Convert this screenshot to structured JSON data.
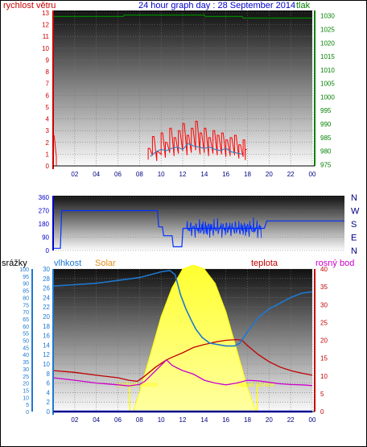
{
  "header": {
    "left_label": "rychlost větru",
    "title": "24 hour graph day : 28 September 2014",
    "right_label": "tlak"
  },
  "colors": {
    "wind": "#ff0000",
    "gust": "#4080c0",
    "pressure": "#008000",
    "direction": "#0030ff",
    "humidity": "#1e78d0",
    "solar": "#ffff00",
    "temperature": "#c00000",
    "dewpoint": "#cc00cc",
    "rain": "#0000ff"
  },
  "chart_data": [
    {
      "type": "line",
      "name": "wind-pressure",
      "x_ticks": [
        "02",
        "04",
        "06",
        "08",
        "10",
        "12",
        "14",
        "16",
        "18",
        "20",
        "22",
        "00"
      ],
      "y_left": {
        "label": "rychlost větru",
        "ticks": [
          0,
          1,
          2,
          3,
          4,
          5,
          6,
          7,
          8,
          9,
          10,
          11,
          12,
          13
        ],
        "ylim": [
          0,
          13
        ]
      },
      "y_right": {
        "label": "tlak",
        "ticks": [
          975,
          980,
          985,
          990,
          995,
          1000,
          1005,
          1010,
          1015,
          1020,
          1025,
          1030
        ],
        "ylim": [
          974.5,
          1032
        ]
      },
      "series": [
        {
          "key": "wind_speed",
          "x": [
            8.8,
            9.2,
            9.6,
            10,
            10.4,
            10.8,
            11.2,
            11.6,
            12,
            12.4,
            12.8,
            13.2,
            13.6,
            14,
            14.4,
            14.8,
            15.2,
            15.6,
            16,
            16.4,
            16.8,
            17.2,
            17.6,
            17.8
          ],
          "values": [
            1.5,
            2.5,
            1.2,
            2.8,
            2,
            3.2,
            2.4,
            3,
            3.6,
            2.6,
            3.2,
            3.8,
            2.8,
            3.2,
            2.4,
            3,
            2.6,
            2.8,
            2.2,
            2.4,
            2.6,
            1.8,
            2.2,
            1.4
          ]
        },
        {
          "key": "wind_gust",
          "x": [
            9,
            9.5,
            10,
            10.5,
            11,
            11.5,
            12,
            12.5,
            13,
            13.5,
            14,
            14.5,
            15,
            15.5,
            16,
            16.5,
            17,
            17.5
          ],
          "values": [
            0.8,
            1.2,
            1.4,
            1.3,
            1.5,
            1.6,
            1.4,
            1.9,
            1.7,
            1.6,
            1.5,
            1.6,
            1.4,
            1.3,
            1.5,
            1.2,
            1.1,
            1
          ]
        },
        {
          "key": "pressure",
          "x": [
            0,
            6.5,
            6.6,
            14,
            14.1,
            17.5,
            17.6,
            24
          ],
          "values": [
            1029.8,
            1029.8,
            1030.3,
            1030.3,
            1029.8,
            1029.8,
            1029.2,
            1029.2
          ]
        }
      ],
      "early_wind": {
        "x": [
          0.1,
          0.3
        ],
        "values": [
          2.6,
          0.8
        ]
      }
    },
    {
      "type": "line",
      "name": "wind-direction",
      "y_left": {
        "ticks": [
          0,
          90,
          180,
          270,
          360
        ],
        "ylim": [
          0,
          360
        ]
      },
      "y_right": {
        "labels": [
          "N",
          "W",
          "S",
          "E",
          "N"
        ]
      },
      "series": [
        {
          "key": "direction",
          "x": [
            0,
            0.6,
            0.7,
            8.6,
            8.7,
            9.0,
            9.1,
            9.8,
            9.9,
            10.6,
            10.7,
            17.4,
            17.6,
            24
          ],
          "values": [
            15,
            15,
            270,
            270,
            160,
            160,
            100,
            100,
            25,
            25,
            150,
            150,
            200,
            200
          ]
        }
      ],
      "noise_range": {
        "x": [
          11,
          17.2
        ]
      }
    },
    {
      "type": "line",
      "name": "combined",
      "x_ticks": [
        "02",
        "04",
        "06",
        "08",
        "10",
        "12",
        "14",
        "16",
        "18",
        "20",
        "22",
        "00"
      ],
      "y_left_outer": {
        "label": "srážky",
        "ticks": [
          0,
          5,
          10,
          15,
          20,
          25,
          30,
          35,
          40,
          45,
          50,
          55,
          60,
          65,
          70,
          75,
          80,
          85,
          90,
          95,
          100
        ],
        "ylim": [
          0,
          100
        ]
      },
      "y_left_inner": {
        "label": "vlhkost",
        "ticks": [
          0,
          2,
          4,
          6,
          8,
          10,
          12,
          14,
          16,
          18,
          20,
          22,
          24,
          26,
          28,
          30
        ],
        "ylim": [
          0,
          30
        ]
      },
      "y_right": {
        "label": "teplota",
        "ticks": [
          0,
          5,
          10,
          15,
          20,
          25,
          30,
          35,
          40
        ],
        "ylim": [
          0,
          40
        ]
      },
      "top_labels": {
        "solar": "Solar",
        "temperature": "teplota",
        "dewpoint": "rosný bod"
      },
      "annotations": {
        "sunrise": "východ slunce",
        "sunset": "západ slunce",
        "sunrise_x": 7.1,
        "sunset_x": 18.9
      },
      "series": [
        {
          "key": "humidity",
          "x": [
            0,
            2,
            4,
            6,
            8,
            9,
            10,
            10.8,
            11.3,
            11.8,
            12.3,
            12.8,
            13.2,
            13.8,
            14.5,
            16,
            16.8,
            17.3,
            18,
            19,
            20,
            21,
            22,
            23,
            24
          ],
          "values": [
            88,
            89,
            90,
            92,
            94,
            96,
            98,
            99,
            96,
            82,
            72,
            64,
            58,
            52,
            48,
            46,
            46,
            48,
            56,
            66,
            72,
            76,
            80,
            83,
            84
          ]
        },
        {
          "key": "temperature",
          "x": [
            0,
            2,
            4,
            6,
            7,
            7.8,
            8.5,
            9.5,
            10.5,
            11,
            12,
            13,
            14,
            15,
            16,
            17,
            17.5,
            18,
            19,
            20,
            21,
            22,
            23,
            24
          ],
          "values": [
            11.5,
            11,
            10.2,
            9.5,
            8.8,
            8.5,
            10,
            12.5,
            14.5,
            15.2,
            16.5,
            18,
            18.8,
            19.5,
            20,
            20.2,
            20,
            18.5,
            16,
            14,
            12.5,
            11.5,
            10.8,
            10.2
          ]
        },
        {
          "key": "dewpoint",
          "x": [
            0,
            2,
            4,
            6,
            7,
            8,
            8.5,
            9.5,
            10.5,
            11,
            11.5,
            12,
            13,
            14,
            15,
            16,
            17,
            18,
            19,
            20,
            21,
            22,
            23,
            24
          ],
          "values": [
            9.5,
            8.8,
            8,
            7.5,
            7.2,
            7.6,
            8.5,
            11.5,
            14.5,
            13,
            12.2,
            11.5,
            10.5,
            8.8,
            8,
            7.5,
            8,
            8.8,
            8.6,
            8.2,
            7.8,
            7.6,
            7.5,
            7.3
          ]
        },
        {
          "key": "solar",
          "x": [
            7.4,
            8,
            9,
            10,
            11,
            12,
            13,
            14,
            15,
            16,
            17,
            18,
            18.8
          ],
          "values": [
            0,
            4,
            12,
            20,
            26,
            30,
            30.8,
            30,
            27,
            21,
            13,
            5,
            0
          ]
        },
        {
          "key": "rain",
          "x": [
            0,
            24
          ],
          "values": [
            0,
            0
          ]
        }
      ]
    }
  ]
}
